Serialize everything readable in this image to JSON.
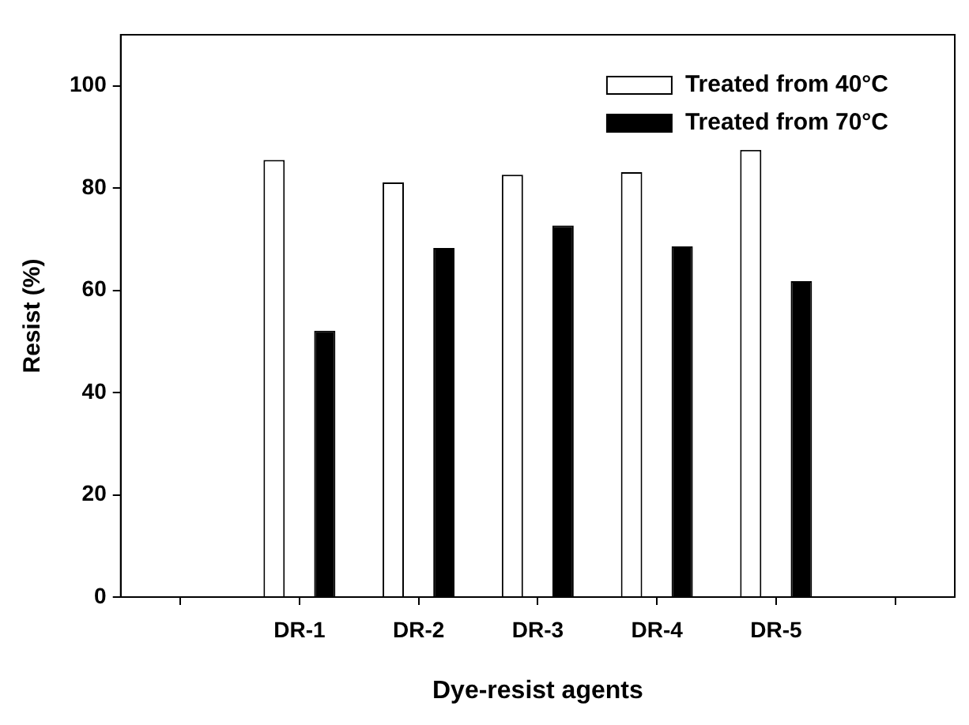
{
  "chart_data": {
    "type": "bar",
    "xlabel": "Dye-resist agents",
    "ylabel": "Resist (%)",
    "categories": [
      null,
      "DR-1",
      "DR-2",
      "DR-3",
      "DR-4",
      "DR-5",
      null
    ],
    "series": [
      {
        "name": "Treated from 40°C",
        "color": "#ffffff",
        "values": [
          null,
          85.5,
          81.1,
          82.6,
          83.1,
          87.5,
          null
        ]
      },
      {
        "name": "Treated from 70°C",
        "color": "#000000",
        "values": [
          null,
          52.1,
          68.3,
          72.7,
          68.6,
          61.8,
          null
        ]
      }
    ],
    "ylim": [
      0,
      110
    ],
    "yticks": [
      0,
      20,
      40,
      60,
      80,
      100
    ],
    "grid": false,
    "legend": "top right"
  }
}
